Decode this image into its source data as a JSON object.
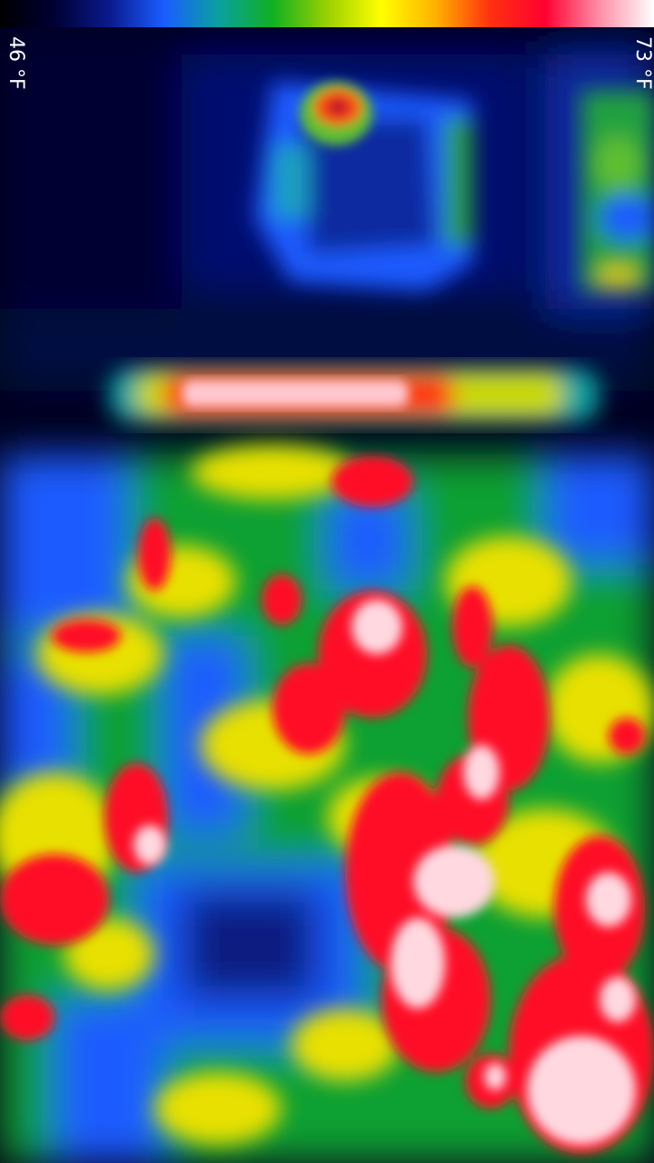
{
  "palette": {
    "colors": [
      "#000000",
      "#000033",
      "#0a1a8c",
      "#1a5cff",
      "#0aa0a0",
      "#10b020",
      "#9ad000",
      "#ffff00",
      "#ffb000",
      "#ff3010",
      "#ff0030",
      "#ff90a8",
      "#ffffff"
    ]
  },
  "scale": {
    "min_label": "46 °F",
    "max_label": "73 °F"
  }
}
